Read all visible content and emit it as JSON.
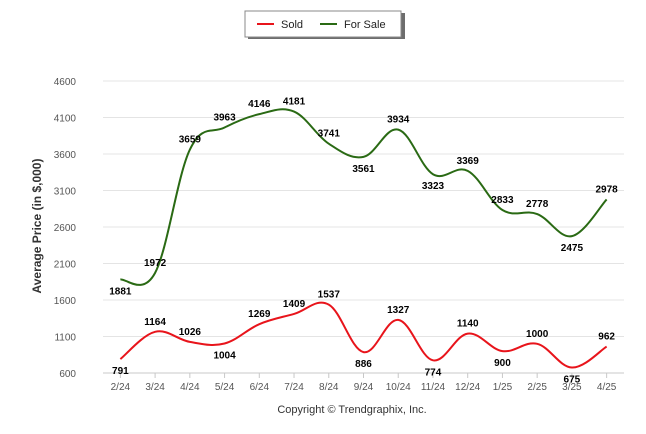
{
  "chart_data": {
    "type": "line",
    "categories": [
      "2/24",
      "3/24",
      "4/24",
      "5/24",
      "6/24",
      "7/24",
      "8/24",
      "9/24",
      "10/24",
      "11/24",
      "12/24",
      "1/25",
      "2/25",
      "3/25",
      "4/25"
    ],
    "series": [
      {
        "name": "Sold",
        "color": "#e8141b",
        "values": [
          791,
          1164,
          1026,
          1004,
          1269,
          1409,
          1537,
          886,
          1327,
          774,
          1140,
          900,
          1000,
          675,
          962
        ]
      },
      {
        "name": "For Sale",
        "color": "#2a6a14",
        "values": [
          1881,
          1972,
          3659,
          3963,
          4146,
          4181,
          3741,
          3561,
          3934,
          3323,
          3369,
          2833,
          2778,
          2475,
          2978
        ]
      }
    ],
    "yticks": [
      "600",
      "1100",
      "1600",
      "2100",
      "2600",
      "3100",
      "3600",
      "4100",
      "4600"
    ],
    "ylim": [
      600,
      4600
    ],
    "ylabel": "Average Price (in $,000)",
    "xlabel": "",
    "grid": true,
    "legend_position": "top-center"
  },
  "footer": {
    "copyright": "Copyright © Trendgraphix, Inc."
  }
}
